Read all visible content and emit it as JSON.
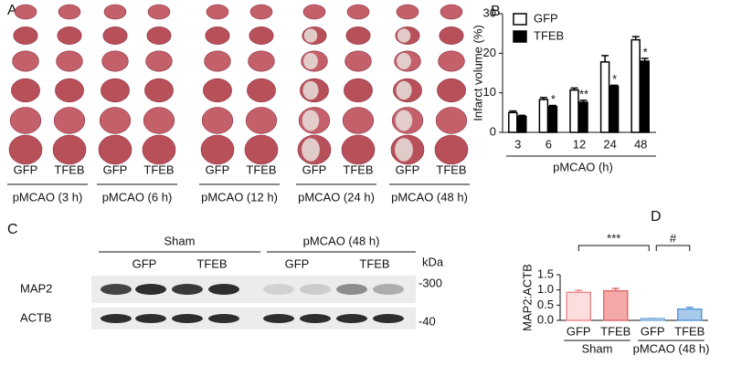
{
  "chart_data": [
    {
      "type": "bar",
      "panel_label": "B",
      "ylabel": "Infarct volume (%)",
      "xlabel": "pMCAO (h)",
      "categories": [
        "3",
        "6",
        "12",
        "24",
        "48"
      ],
      "series": [
        {
          "name": "GFP",
          "color": "#ffffff",
          "values": [
            5,
            8.3,
            10.7,
            17.8,
            23.4
          ],
          "errors": [
            0.4,
            0.5,
            0.5,
            1.6,
            0.8
          ]
        },
        {
          "name": "TFEB",
          "color": "#000000",
          "values": [
            4,
            6.5,
            7.6,
            11.7,
            18
          ],
          "errors": [
            0.3,
            0.3,
            0.5,
            0.2,
            0.7
          ],
          "annotations": [
            null,
            "*",
            "**",
            "*",
            "*"
          ]
        }
      ],
      "ylim": [
        0,
        30
      ],
      "yticks": [
        0,
        10,
        20,
        30
      ],
      "legend": "upper-left"
    },
    {
      "type": "bar",
      "panel_label": "D",
      "ylabel": "MAP2:ACTB",
      "categories": [
        "GFP",
        "TFEB",
        "GFP",
        "TFEB"
      ],
      "groups": [
        "Sham",
        "pMCAO (48 h)"
      ],
      "values": [
        0.92,
        0.97,
        0.06,
        0.37
      ],
      "errors": [
        0.07,
        0.08,
        0.01,
        0.06
      ],
      "colors": [
        "#fcdede",
        "#f5a8a8",
        "#d8e8f6",
        "#a9cbeb"
      ],
      "edge_colors": [
        "#ee8c8c",
        "#e06c6c",
        "#7fb0dc",
        "#5b9bd5"
      ],
      "comparisons": [
        "***",
        "#"
      ],
      "ylim": [
        0,
        1.5
      ],
      "yticks": [
        {
          "value": 0,
          "label": "0.0"
        },
        0.5,
        {
          "value": 1,
          "label": "1.0"
        },
        1.5
      ]
    }
  ],
  "panel_a": {
    "label": "A",
    "groups": [
      {
        "lanes": [
          "GFP",
          "TFEB"
        ],
        "condition": "pMCAO (3 h)"
      },
      {
        "lanes": [
          "GFP",
          "TFEB"
        ],
        "condition": "pMCAO (6 h)"
      },
      {
        "lanes": [
          "GFP",
          "TFEB"
        ],
        "condition": "pMCAO (12 h)"
      },
      {
        "lanes": [
          "GFP",
          "TFEB"
        ],
        "condition": "pMCAO (24 h)"
      },
      {
        "lanes": [
          "GFP",
          "TFEB"
        ],
        "condition": "pMCAO (48 h)"
      }
    ]
  },
  "panel_c": {
    "label": "C",
    "unit": "kDa",
    "groups": [
      {
        "name": "Sham",
        "lanes": [
          "GFP",
          "TFEB"
        ]
      },
      {
        "name": "pMCAO (48 h)",
        "lanes": [
          "GFP",
          "TFEB"
        ]
      }
    ],
    "rows": [
      {
        "name": "MAP2",
        "marker": "-300"
      },
      {
        "name": "ACTB",
        "marker": "-40"
      }
    ]
  }
}
